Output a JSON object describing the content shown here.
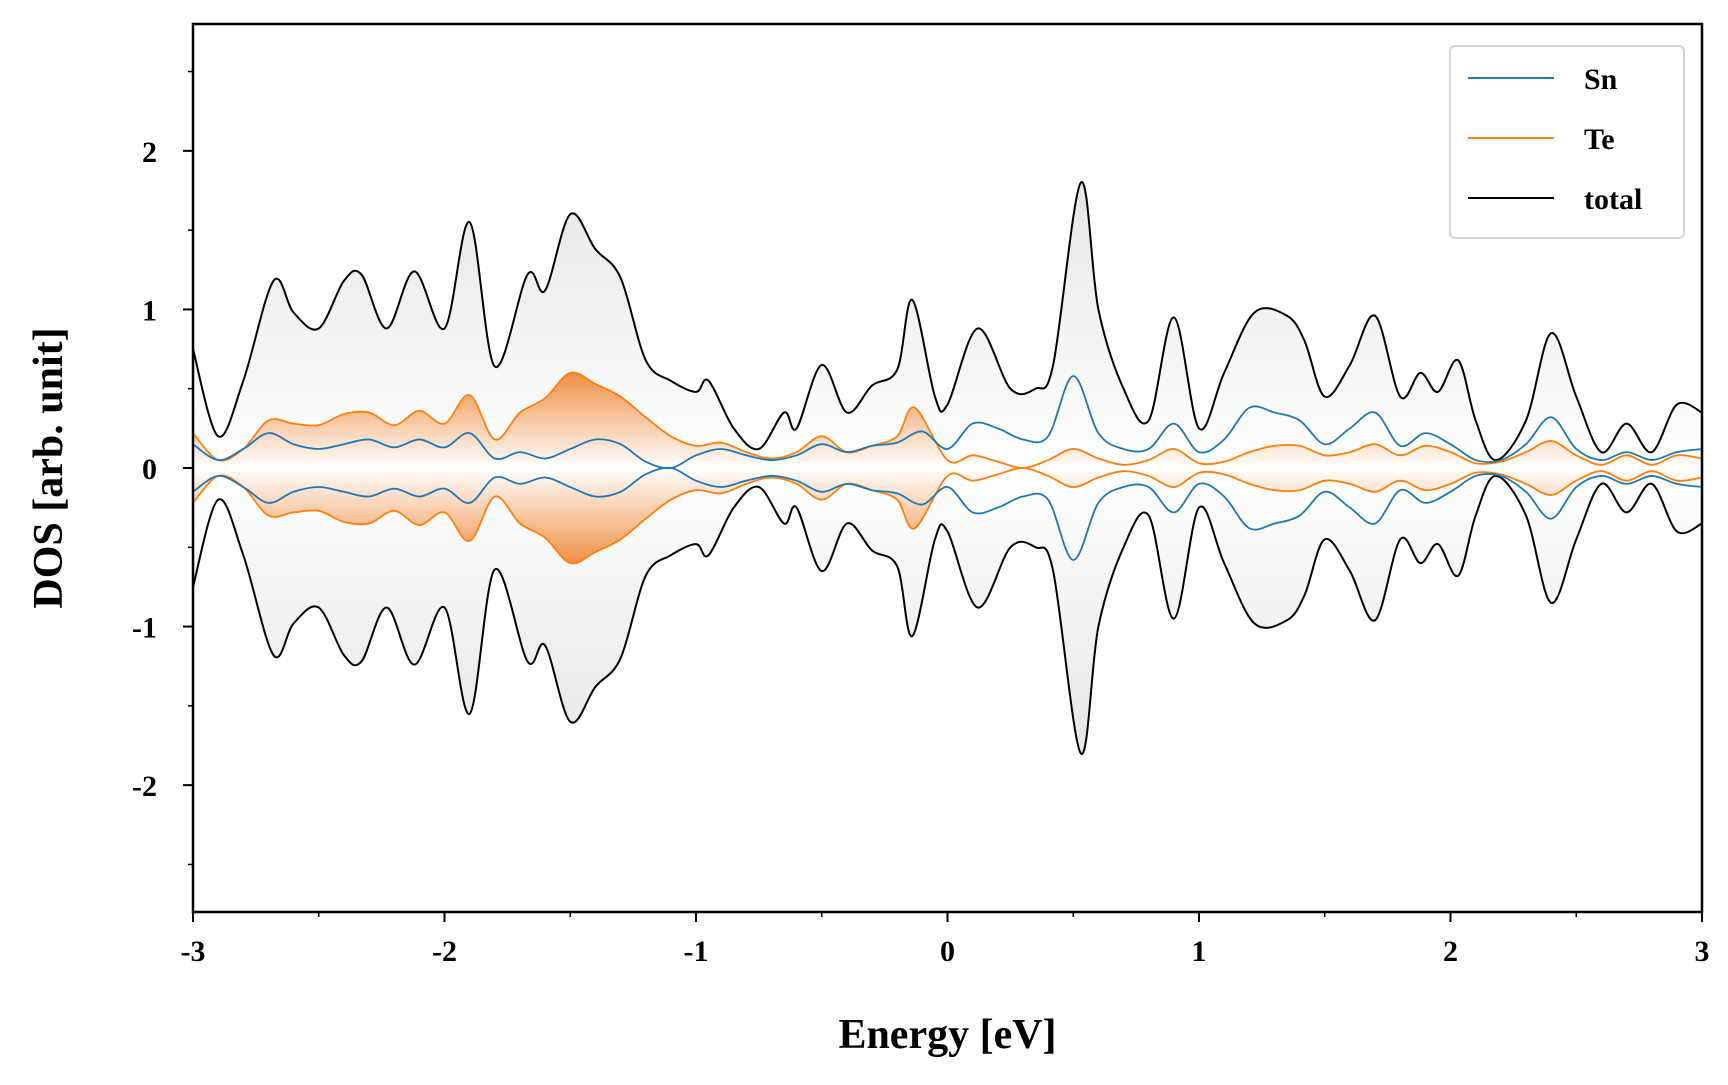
{
  "chart_data": {
    "type": "line",
    "xlabel": "Energy [eV]",
    "ylabel": "DOS [arb. unit]",
    "xlim": [
      -3,
      3
    ],
    "ylim": [
      -2.8,
      2.8
    ],
    "xticks": [
      -3,
      -2,
      -1,
      0,
      1,
      2,
      3
    ],
    "xtick_labels": [
      "-3",
      "-2",
      "-1",
      "0",
      "1",
      "2",
      "3"
    ],
    "yticks": [
      -2,
      -1,
      0,
      1,
      2
    ],
    "ytick_labels": [
      "-2",
      "-1",
      "0",
      "1",
      "2"
    ],
    "grid": false,
    "legend_position": "top-right",
    "mirrored_about_zero": true,
    "series": [
      {
        "name": "Sn",
        "color": "#1f77b4",
        "fill": false,
        "points": [
          [
            -3.0,
            0.15
          ],
          [
            -2.9,
            0.05
          ],
          [
            -2.8,
            0.12
          ],
          [
            -2.7,
            0.22
          ],
          [
            -2.6,
            0.15
          ],
          [
            -2.5,
            0.12
          ],
          [
            -2.4,
            0.15
          ],
          [
            -2.3,
            0.18
          ],
          [
            -2.2,
            0.13
          ],
          [
            -2.1,
            0.18
          ],
          [
            -2.0,
            0.13
          ],
          [
            -1.9,
            0.22
          ],
          [
            -1.8,
            0.06
          ],
          [
            -1.7,
            0.1
          ],
          [
            -1.6,
            0.06
          ],
          [
            -1.5,
            0.12
          ],
          [
            -1.4,
            0.18
          ],
          [
            -1.3,
            0.15
          ],
          [
            -1.2,
            0.04
          ],
          [
            -1.1,
            0.0
          ],
          [
            -1.0,
            0.08
          ],
          [
            -0.9,
            0.12
          ],
          [
            -0.8,
            0.08
          ],
          [
            -0.7,
            0.05
          ],
          [
            -0.6,
            0.08
          ],
          [
            -0.5,
            0.15
          ],
          [
            -0.4,
            0.1
          ],
          [
            -0.3,
            0.14
          ],
          [
            -0.2,
            0.16
          ],
          [
            -0.1,
            0.23
          ],
          [
            0.0,
            0.12
          ],
          [
            0.1,
            0.28
          ],
          [
            0.2,
            0.25
          ],
          [
            0.3,
            0.18
          ],
          [
            0.4,
            0.2
          ],
          [
            0.5,
            0.58
          ],
          [
            0.6,
            0.22
          ],
          [
            0.7,
            0.12
          ],
          [
            0.8,
            0.12
          ],
          [
            0.9,
            0.28
          ],
          [
            1.0,
            0.1
          ],
          [
            1.1,
            0.18
          ],
          [
            1.2,
            0.38
          ],
          [
            1.3,
            0.35
          ],
          [
            1.4,
            0.3
          ],
          [
            1.5,
            0.15
          ],
          [
            1.6,
            0.25
          ],
          [
            1.7,
            0.35
          ],
          [
            1.8,
            0.14
          ],
          [
            1.9,
            0.22
          ],
          [
            2.0,
            0.15
          ],
          [
            2.1,
            0.05
          ],
          [
            2.2,
            0.05
          ],
          [
            2.3,
            0.15
          ],
          [
            2.4,
            0.32
          ],
          [
            2.5,
            0.12
          ],
          [
            2.6,
            0.05
          ],
          [
            2.7,
            0.1
          ],
          [
            2.8,
            0.05
          ],
          [
            2.9,
            0.1
          ],
          [
            3.0,
            0.12
          ]
        ]
      },
      {
        "name": "Te",
        "color": "#ff7f0e",
        "fill": true,
        "points": [
          [
            -3.0,
            0.22
          ],
          [
            -2.9,
            0.05
          ],
          [
            -2.8,
            0.12
          ],
          [
            -2.7,
            0.3
          ],
          [
            -2.6,
            0.28
          ],
          [
            -2.5,
            0.27
          ],
          [
            -2.4,
            0.34
          ],
          [
            -2.3,
            0.35
          ],
          [
            -2.2,
            0.27
          ],
          [
            -2.1,
            0.36
          ],
          [
            -2.0,
            0.28
          ],
          [
            -1.9,
            0.46
          ],
          [
            -1.8,
            0.18
          ],
          [
            -1.7,
            0.35
          ],
          [
            -1.6,
            0.44
          ],
          [
            -1.5,
            0.6
          ],
          [
            -1.4,
            0.53
          ],
          [
            -1.3,
            0.45
          ],
          [
            -1.2,
            0.32
          ],
          [
            -1.1,
            0.2
          ],
          [
            -1.0,
            0.14
          ],
          [
            -0.9,
            0.16
          ],
          [
            -0.8,
            0.1
          ],
          [
            -0.7,
            0.06
          ],
          [
            -0.6,
            0.1
          ],
          [
            -0.5,
            0.2
          ],
          [
            -0.4,
            0.1
          ],
          [
            -0.3,
            0.14
          ],
          [
            -0.2,
            0.2
          ],
          [
            -0.13,
            0.38
          ],
          [
            0.0,
            0.05
          ],
          [
            0.1,
            0.08
          ],
          [
            0.2,
            0.04
          ],
          [
            0.3,
            0.0
          ],
          [
            0.4,
            0.05
          ],
          [
            0.5,
            0.12
          ],
          [
            0.6,
            0.06
          ],
          [
            0.7,
            0.02
          ],
          [
            0.8,
            0.05
          ],
          [
            0.9,
            0.12
          ],
          [
            1.0,
            0.03
          ],
          [
            1.1,
            0.04
          ],
          [
            1.2,
            0.1
          ],
          [
            1.3,
            0.14
          ],
          [
            1.4,
            0.14
          ],
          [
            1.5,
            0.08
          ],
          [
            1.6,
            0.1
          ],
          [
            1.7,
            0.15
          ],
          [
            1.8,
            0.08
          ],
          [
            1.9,
            0.14
          ],
          [
            2.0,
            0.1
          ],
          [
            2.1,
            0.03
          ],
          [
            2.2,
            0.04
          ],
          [
            2.3,
            0.1
          ],
          [
            2.4,
            0.17
          ],
          [
            2.5,
            0.08
          ],
          [
            2.6,
            0.02
          ],
          [
            2.7,
            0.08
          ],
          [
            2.8,
            0.02
          ],
          [
            2.9,
            0.08
          ],
          [
            3.0,
            0.06
          ]
        ]
      },
      {
        "name": "total",
        "color": "#000000",
        "fill": true,
        "points": [
          [
            -3.0,
            0.75
          ],
          [
            -2.9,
            0.2
          ],
          [
            -2.8,
            0.55
          ],
          [
            -2.68,
            1.18
          ],
          [
            -2.6,
            0.98
          ],
          [
            -2.5,
            0.88
          ],
          [
            -2.4,
            1.18
          ],
          [
            -2.33,
            1.22
          ],
          [
            -2.23,
            0.88
          ],
          [
            -2.12,
            1.24
          ],
          [
            -2.0,
            0.88
          ],
          [
            -1.9,
            1.55
          ],
          [
            -1.8,
            0.64
          ],
          [
            -1.67,
            1.22
          ],
          [
            -1.6,
            1.12
          ],
          [
            -1.5,
            1.6
          ],
          [
            -1.4,
            1.38
          ],
          [
            -1.3,
            1.2
          ],
          [
            -1.2,
            0.68
          ],
          [
            -1.1,
            0.55
          ],
          [
            -1.0,
            0.48
          ],
          [
            -0.95,
            0.55
          ],
          [
            -0.85,
            0.25
          ],
          [
            -0.75,
            0.12
          ],
          [
            -0.65,
            0.35
          ],
          [
            -0.6,
            0.25
          ],
          [
            -0.5,
            0.65
          ],
          [
            -0.4,
            0.35
          ],
          [
            -0.3,
            0.52
          ],
          [
            -0.2,
            0.62
          ],
          [
            -0.14,
            1.06
          ],
          [
            -0.05,
            0.45
          ],
          [
            0.0,
            0.4
          ],
          [
            0.12,
            0.88
          ],
          [
            0.25,
            0.5
          ],
          [
            0.35,
            0.5
          ],
          [
            0.42,
            0.65
          ],
          [
            0.53,
            1.8
          ],
          [
            0.6,
            1.0
          ],
          [
            0.7,
            0.5
          ],
          [
            0.8,
            0.3
          ],
          [
            0.9,
            0.95
          ],
          [
            1.0,
            0.25
          ],
          [
            1.1,
            0.6
          ],
          [
            1.22,
            0.98
          ],
          [
            1.35,
            0.96
          ],
          [
            1.42,
            0.8
          ],
          [
            1.5,
            0.45
          ],
          [
            1.6,
            0.65
          ],
          [
            1.7,
            0.96
          ],
          [
            1.8,
            0.45
          ],
          [
            1.88,
            0.6
          ],
          [
            1.95,
            0.48
          ],
          [
            2.03,
            0.68
          ],
          [
            2.1,
            0.3
          ],
          [
            2.18,
            0.05
          ],
          [
            2.3,
            0.3
          ],
          [
            2.4,
            0.85
          ],
          [
            2.5,
            0.45
          ],
          [
            2.6,
            0.1
          ],
          [
            2.7,
            0.28
          ],
          [
            2.8,
            0.1
          ],
          [
            2.9,
            0.4
          ],
          [
            3.0,
            0.35
          ]
        ]
      }
    ]
  }
}
